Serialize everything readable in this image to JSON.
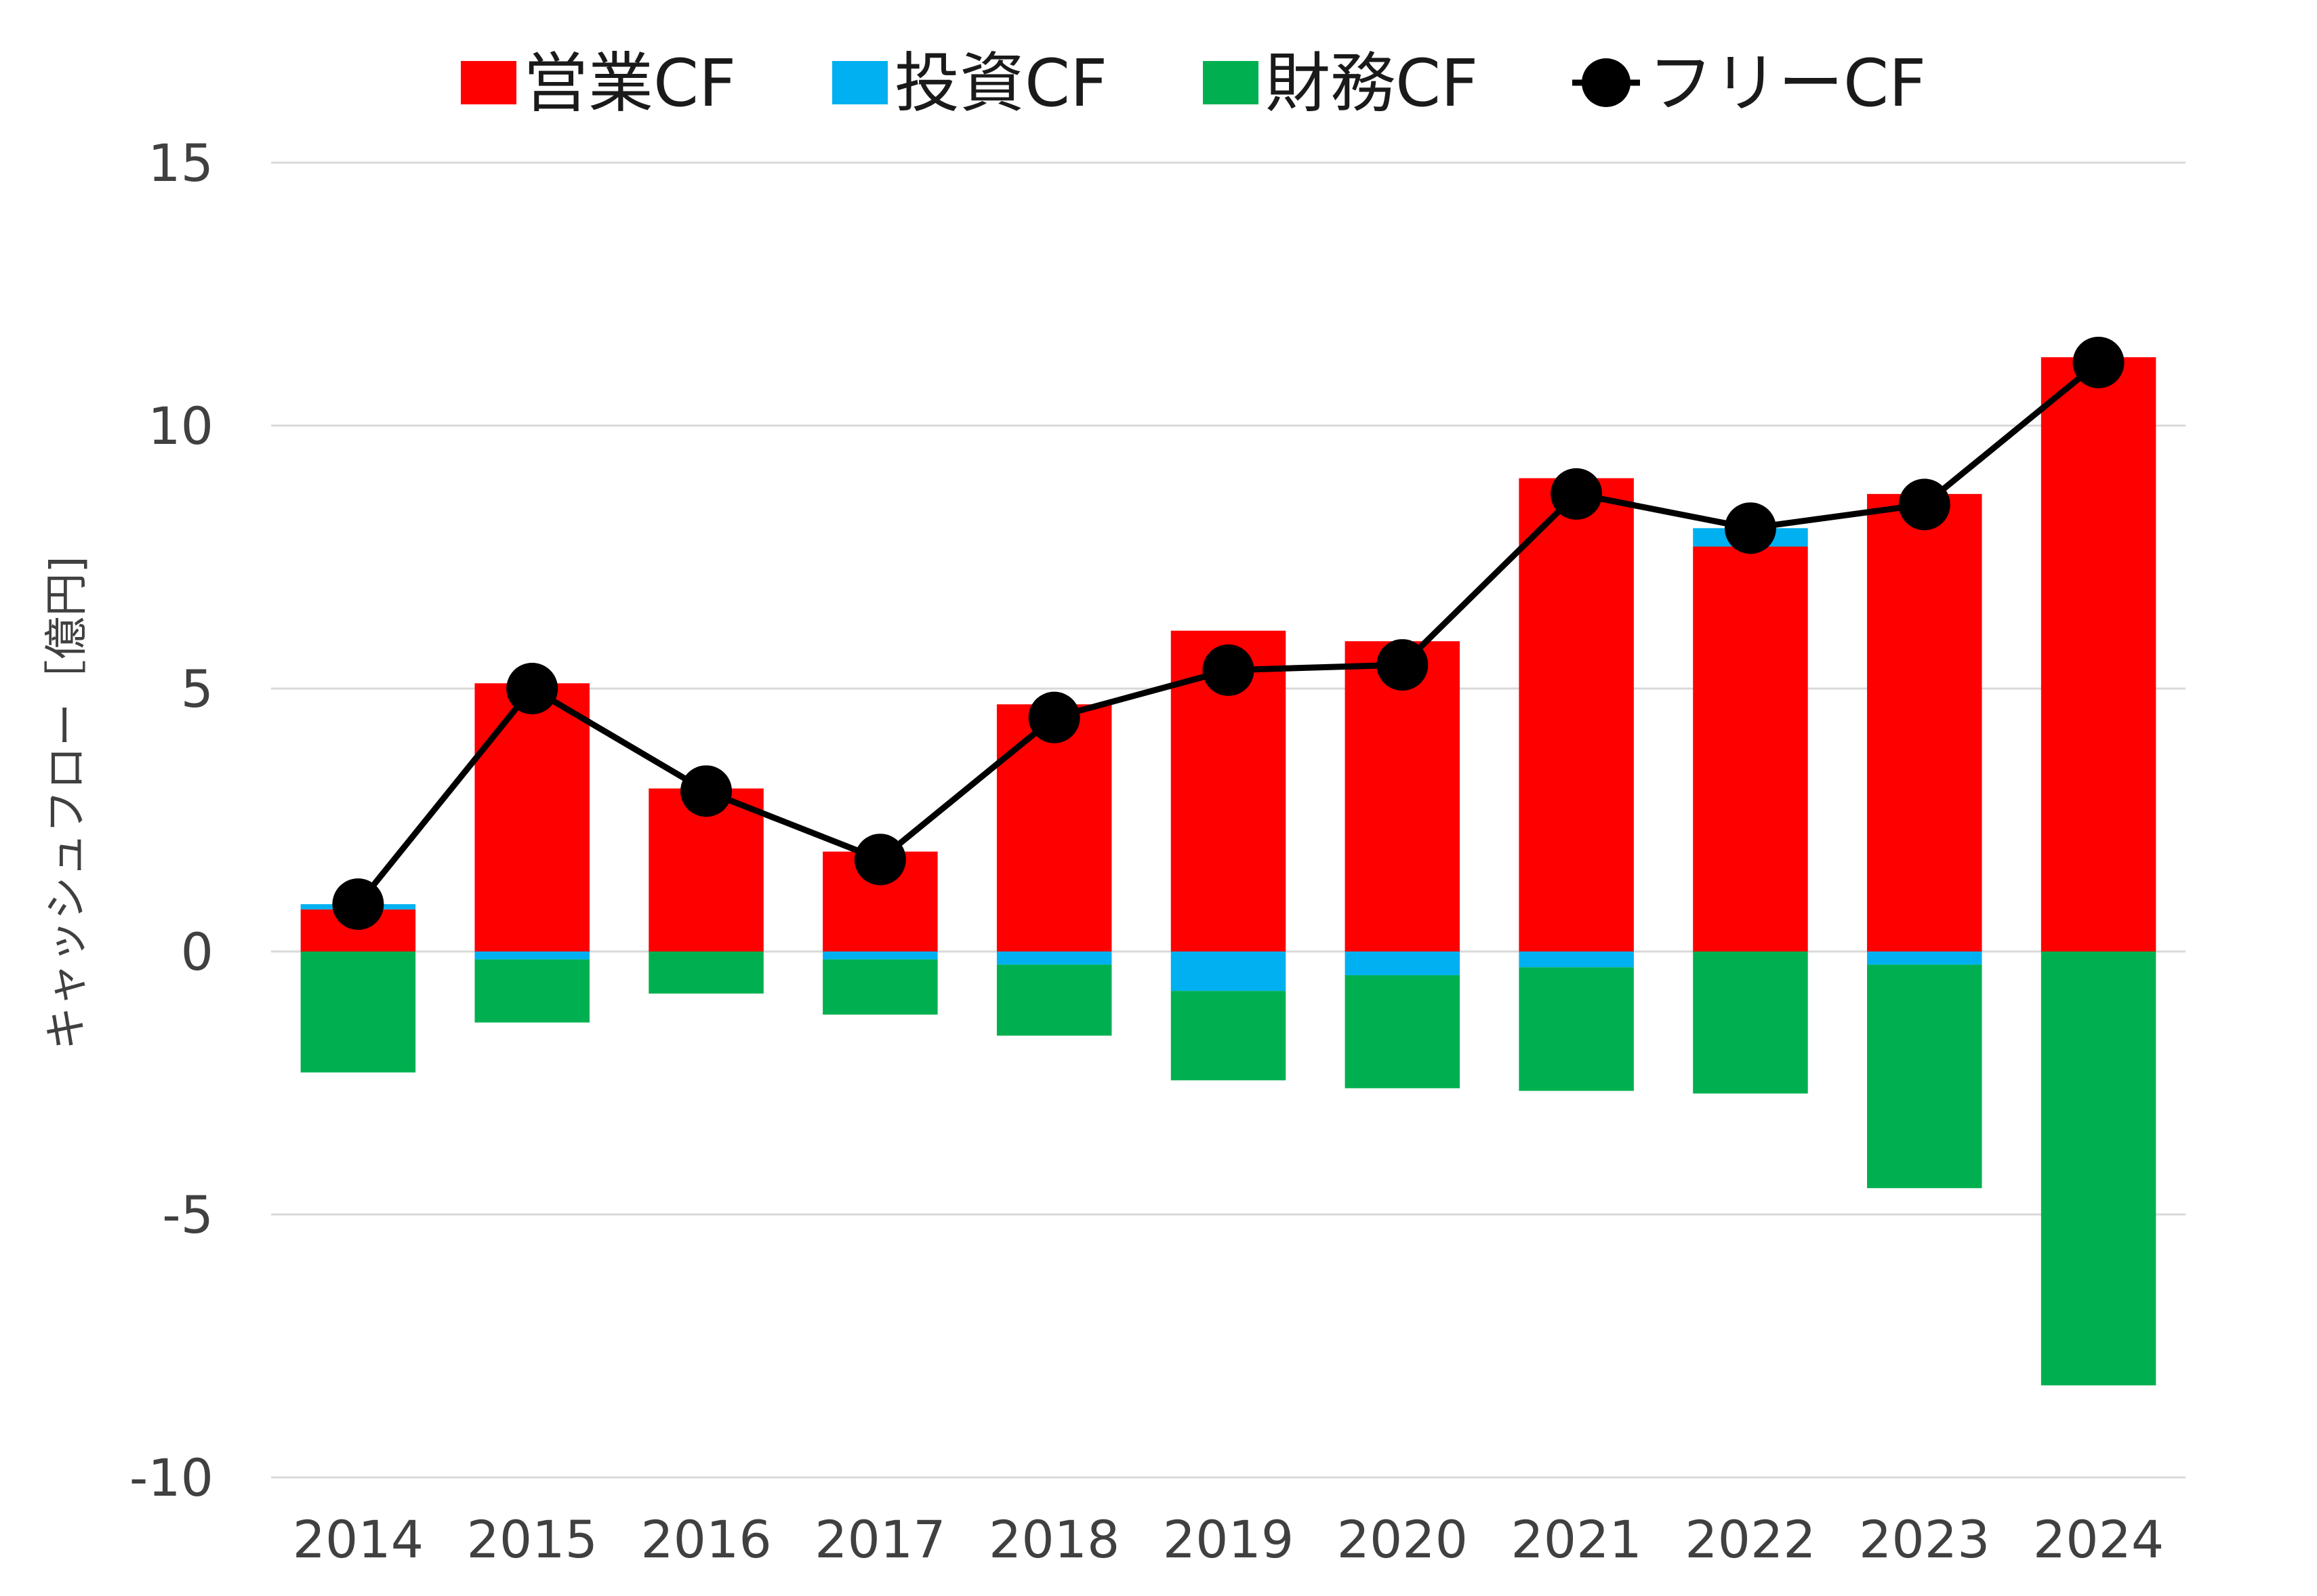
{
  "chart_data": {
    "type": "bar",
    "stacked": true,
    "categories": [
      "2014",
      "2015",
      "2016",
      "2017",
      "2018",
      "2019",
      "2020",
      "2021",
      "2022",
      "2023",
      "2024"
    ],
    "series": [
      {
        "name": "営業CF",
        "kind": "bar",
        "color": "#ff0000",
        "values": [
          0.8,
          5.1,
          3.1,
          1.9,
          4.7,
          6.1,
          5.9,
          9.0,
          7.7,
          8.7,
          11.3
        ]
      },
      {
        "name": "投資CF",
        "kind": "bar",
        "color": "#00b0f0",
        "values": [
          0.1,
          -0.15,
          0.0,
          -0.15,
          -0.25,
          -0.75,
          -0.45,
          -0.3,
          0.35,
          -0.25,
          0.0
        ]
      },
      {
        "name": "財務CF",
        "kind": "bar",
        "color": "#00b050",
        "values": [
          -2.3,
          -1.2,
          -0.8,
          -1.05,
          -1.35,
          -1.7,
          -2.15,
          -2.35,
          -2.7,
          -4.25,
          -8.25
        ]
      },
      {
        "name": "フリーCF",
        "kind": "line",
        "color": "#000000",
        "values": [
          0.9,
          5.0,
          3.05,
          1.75,
          4.45,
          5.35,
          5.45,
          8.7,
          8.05,
          8.5,
          11.2
        ]
      }
    ],
    "ylabel": "キャッシュフロー［億円]",
    "ylim": [
      -10,
      15
    ],
    "yticks": [
      -10,
      -5,
      0,
      5,
      10,
      15
    ],
    "grid": true,
    "legend": "top"
  }
}
